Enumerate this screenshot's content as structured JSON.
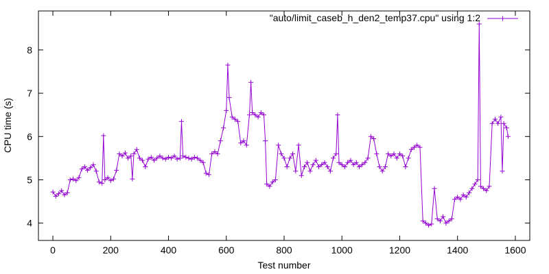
{
  "chart_data": {
    "type": "line",
    "title": "",
    "xlabel": "Test number",
    "ylabel": "CPU time (s)",
    "xlim": [
      -50,
      1650
    ],
    "ylim": [
      3.6,
      8.9
    ],
    "xticks": [
      0,
      200,
      400,
      600,
      800,
      1000,
      1200,
      1400,
      1600
    ],
    "yticks": [
      4,
      5,
      6,
      7,
      8
    ],
    "grid": false,
    "legend_position": "top-right",
    "series": [
      {
        "name": "\"auto/limit_caseb_h_den2_temp37.cpu\" using 1:2",
        "color": "#9400d3",
        "marker": "plus",
        "points": [
          [
            0,
            4.72
          ],
          [
            10,
            4.62
          ],
          [
            20,
            4.68
          ],
          [
            30,
            4.75
          ],
          [
            40,
            4.65
          ],
          [
            50,
            4.7
          ],
          [
            60,
            5.0
          ],
          [
            70,
            5.02
          ],
          [
            80,
            4.98
          ],
          [
            90,
            5.05
          ],
          [
            100,
            5.25
          ],
          [
            110,
            5.3
          ],
          [
            120,
            5.22
          ],
          [
            130,
            5.28
          ],
          [
            140,
            5.35
          ],
          [
            150,
            5.2
          ],
          [
            160,
            4.95
          ],
          [
            170,
            4.92
          ],
          [
            175,
            6.02
          ],
          [
            180,
            5.0
          ],
          [
            190,
            5.05
          ],
          [
            200,
            4.98
          ],
          [
            210,
            5.02
          ],
          [
            220,
            5.22
          ],
          [
            230,
            5.6
          ],
          [
            240,
            5.55
          ],
          [
            250,
            5.62
          ],
          [
            260,
            5.5
          ],
          [
            270,
            5.55
          ],
          [
            275,
            5.02
          ],
          [
            280,
            5.6
          ],
          [
            290,
            5.7
          ],
          [
            300,
            5.5
          ],
          [
            310,
            5.45
          ],
          [
            320,
            5.3
          ],
          [
            330,
            5.48
          ],
          [
            340,
            5.52
          ],
          [
            350,
            5.45
          ],
          [
            360,
            5.5
          ],
          [
            370,
            5.55
          ],
          [
            380,
            5.5
          ],
          [
            390,
            5.48
          ],
          [
            400,
            5.52
          ],
          [
            410,
            5.5
          ],
          [
            420,
            5.55
          ],
          [
            430,
            5.48
          ],
          [
            440,
            5.5
          ],
          [
            445,
            6.35
          ],
          [
            450,
            5.55
          ],
          [
            460,
            5.52
          ],
          [
            470,
            5.5
          ],
          [
            480,
            5.48
          ],
          [
            490,
            5.52
          ],
          [
            500,
            5.5
          ],
          [
            510,
            5.45
          ],
          [
            520,
            5.4
          ],
          [
            530,
            5.15
          ],
          [
            540,
            5.12
          ],
          [
            550,
            5.6
          ],
          [
            560,
            5.65
          ],
          [
            570,
            5.6
          ],
          [
            580,
            5.9
          ],
          [
            590,
            6.2
          ],
          [
            600,
            6.6
          ],
          [
            605,
            7.65
          ],
          [
            610,
            6.9
          ],
          [
            620,
            6.45
          ],
          [
            630,
            6.4
          ],
          [
            640,
            6.35
          ],
          [
            650,
            5.85
          ],
          [
            660,
            5.9
          ],
          [
            670,
            5.8
          ],
          [
            680,
            6.5
          ],
          [
            685,
            7.25
          ],
          [
            690,
            6.55
          ],
          [
            700,
            6.5
          ],
          [
            710,
            6.45
          ],
          [
            720,
            6.55
          ],
          [
            730,
            6.5
          ],
          [
            735,
            5.9
          ],
          [
            740,
            4.9
          ],
          [
            750,
            4.85
          ],
          [
            760,
            4.95
          ],
          [
            770,
            5.0
          ],
          [
            780,
            5.8
          ],
          [
            790,
            5.6
          ],
          [
            800,
            5.5
          ],
          [
            810,
            5.3
          ],
          [
            820,
            5.5
          ],
          [
            830,
            5.6
          ],
          [
            840,
            5.2
          ],
          [
            850,
            5.8
          ],
          [
            860,
            5.1
          ],
          [
            870,
            5.3
          ],
          [
            880,
            5.4
          ],
          [
            890,
            5.2
          ],
          [
            900,
            5.35
          ],
          [
            910,
            5.45
          ],
          [
            920,
            5.3
          ],
          [
            930,
            5.35
          ],
          [
            940,
            5.4
          ],
          [
            950,
            5.3
          ],
          [
            960,
            5.2
          ],
          [
            970,
            5.5
          ],
          [
            980,
            5.6
          ],
          [
            985,
            6.5
          ],
          [
            990,
            5.4
          ],
          [
            1000,
            5.35
          ],
          [
            1010,
            5.3
          ],
          [
            1020,
            5.4
          ],
          [
            1030,
            5.45
          ],
          [
            1040,
            5.35
          ],
          [
            1050,
            5.4
          ],
          [
            1060,
            5.3
          ],
          [
            1070,
            5.35
          ],
          [
            1080,
            5.4
          ],
          [
            1090,
            5.5
          ],
          [
            1100,
            6.0
          ],
          [
            1110,
            5.95
          ],
          [
            1120,
            5.6
          ],
          [
            1130,
            5.3
          ],
          [
            1140,
            5.2
          ],
          [
            1150,
            5.3
          ],
          [
            1160,
            5.6
          ],
          [
            1170,
            5.55
          ],
          [
            1180,
            5.6
          ],
          [
            1190,
            5.5
          ],
          [
            1200,
            5.6
          ],
          [
            1210,
            5.55
          ],
          [
            1220,
            5.3
          ],
          [
            1230,
            5.5
          ],
          [
            1240,
            5.7
          ],
          [
            1250,
            5.75
          ],
          [
            1260,
            5.8
          ],
          [
            1270,
            5.75
          ],
          [
            1280,
            4.05
          ],
          [
            1290,
            4.0
          ],
          [
            1300,
            3.95
          ],
          [
            1310,
            3.98
          ],
          [
            1320,
            4.8
          ],
          [
            1330,
            4.1
          ],
          [
            1340,
            4.05
          ],
          [
            1350,
            4.15
          ],
          [
            1360,
            4.0
          ],
          [
            1370,
            4.05
          ],
          [
            1380,
            4.1
          ],
          [
            1390,
            4.55
          ],
          [
            1400,
            4.6
          ],
          [
            1410,
            4.55
          ],
          [
            1420,
            4.65
          ],
          [
            1430,
            4.6
          ],
          [
            1440,
            4.7
          ],
          [
            1450,
            4.8
          ],
          [
            1460,
            4.9
          ],
          [
            1470,
            5.0
          ],
          [
            1475,
            8.6
          ],
          [
            1480,
            4.85
          ],
          [
            1490,
            4.8
          ],
          [
            1500,
            4.75
          ],
          [
            1510,
            4.85
          ],
          [
            1520,
            6.3
          ],
          [
            1530,
            6.4
          ],
          [
            1540,
            6.3
          ],
          [
            1550,
            6.45
          ],
          [
            1555,
            5.2
          ],
          [
            1560,
            6.3
          ],
          [
            1570,
            6.2
          ],
          [
            1575,
            6.0
          ]
        ]
      }
    ]
  }
}
